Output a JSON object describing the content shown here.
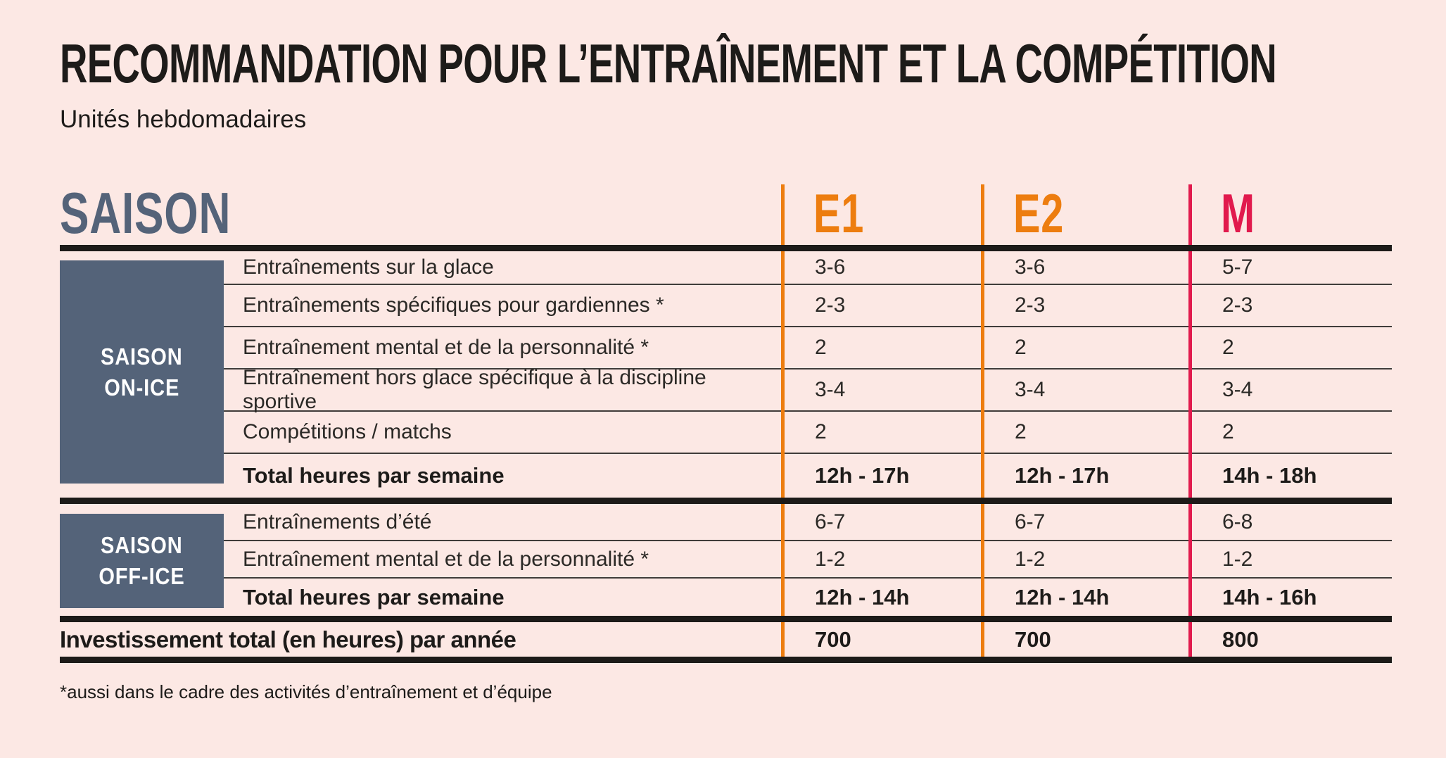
{
  "page": {
    "title": "RECOMMANDATION POUR L’ENTRAÎNEMENT ET LA COMPÉTITION",
    "subtitle": "Unités hebdomadaires",
    "footnote": "*aussi dans le cadre des activités d’entraînement et d’équipe"
  },
  "colors": {
    "background": "#fce8e4",
    "slate_blue": "#546379",
    "orange": "#ed7d0f",
    "crimson": "#e11a4d",
    "line_black": "#1d1b19",
    "line_gray": "#403c3a",
    "text_dark": "#2b2926",
    "box_text_white": "#ffffff"
  },
  "table": {
    "season_header": "SAISON",
    "columns": [
      {
        "label": "E1",
        "color": "#ed7d0f"
      },
      {
        "label": "E2",
        "color": "#ed7d0f"
      },
      {
        "label": "M",
        "color": "#e11a4d"
      }
    ],
    "sections": [
      {
        "group_label_line1": "SAISON",
        "group_label_line2": "ON-ICE",
        "rows": [
          {
            "label": "Entraînements sur la glace",
            "values": [
              "3-6",
              "3-6",
              "5-7"
            ],
            "bold": false
          },
          {
            "label": "Entraînements spécifiques pour gardiennes *",
            "values": [
              "2-3",
              "2-3",
              "2-3"
            ],
            "bold": false
          },
          {
            "label": "Entraînement mental et de la personnalité *",
            "values": [
              "2",
              "2",
              "2"
            ],
            "bold": false
          },
          {
            "label": "Entraînement hors glace spécifique à la discipline sportive",
            "values": [
              "3-4",
              "3-4",
              "3-4"
            ],
            "bold": false
          },
          {
            "label": "Compétitions / matchs",
            "values": [
              "2",
              "2",
              "2"
            ],
            "bold": false
          },
          {
            "label": "Total heures par semaine",
            "values": [
              "12h - 17h",
              "12h - 17h",
              "14h - 18h"
            ],
            "bold": true
          }
        ]
      },
      {
        "group_label_line1": "SAISON",
        "group_label_line2": "OFF-ICE",
        "rows": [
          {
            "label": "Entraînements d’été",
            "values": [
              "6-7",
              "6-7",
              "6-8"
            ],
            "bold": false
          },
          {
            "label": "Entraînement mental et de la personnalité *",
            "values": [
              "1-2",
              "1-2",
              "1-2"
            ],
            "bold": false
          },
          {
            "label": "Total heures par semaine",
            "values": [
              "12h - 14h",
              "12h - 14h",
              "14h - 16h"
            ],
            "bold": true
          }
        ]
      }
    ],
    "summary_row": {
      "label": "Investissement total (en heures) par année",
      "values": [
        "700",
        "700",
        "800"
      ],
      "bold": true
    }
  }
}
